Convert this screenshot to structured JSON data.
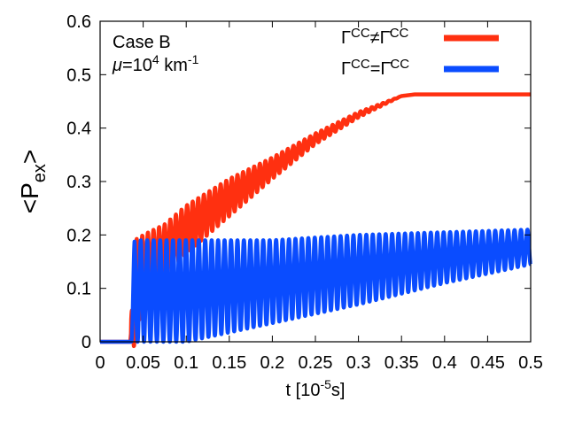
{
  "chart_data": {
    "type": "line",
    "title": "",
    "xlabel": {
      "base": "t [10",
      "sup": "-5",
      "tail": "s]"
    },
    "ylabel": {
      "base": "<P",
      "sub": "ex",
      "tail": ">"
    },
    "xlim": [
      0,
      0.5
    ],
    "ylim": [
      0,
      0.6
    ],
    "x_ticks": [
      0,
      0.05,
      0.1,
      0.15,
      0.2,
      0.25,
      0.3,
      0.35,
      0.4,
      0.45,
      0.5
    ],
    "x_tick_labels": [
      "0",
      "0.05",
      "0.1",
      "0.15",
      "0.2",
      "0.25",
      "0.3",
      "0.35",
      "0.4",
      "0.45",
      "0.5"
    ],
    "y_ticks": [
      0,
      0.1,
      0.2,
      0.3,
      0.4,
      0.5,
      0.6
    ],
    "y_tick_labels": [
      "0",
      "0.1",
      "0.2",
      "0.3",
      "0.4",
      "0.5",
      "0.6"
    ],
    "grid": false,
    "legend_position": "top-right",
    "annotations": {
      "case": "Case B",
      "mu": {
        "sym": "μ",
        "base": "=10",
        "sup": "4",
        "tail": " km",
        "sup2": "-1"
      }
    },
    "series": [
      {
        "name": "ΓCC≠Γ̄CC",
        "legend": {
          "g1": "Γ",
          "sup1": "CC",
          "op": "≠",
          "g2": "Γ̄",
          "sup2": "CC"
        },
        "color": "#ff3010",
        "x": [
          0,
          0.035,
          0.04,
          0.05,
          0.075,
          0.1,
          0.15,
          0.2,
          0.25,
          0.3,
          0.35,
          0.365,
          0.5
        ],
        "y": [
          0,
          0,
          0.09,
          0.14,
          0.17,
          0.21,
          0.27,
          0.325,
          0.38,
          0.425,
          0.46,
          0.463,
          0.463
        ],
        "oscillation_amplitude": [
          0,
          0,
          0.1,
          0.06,
          0.05,
          0.045,
          0.035,
          0.02,
          0.01,
          0.005,
          0,
          0,
          0
        ]
      },
      {
        "name": "ΓCC=Γ̄CC",
        "legend": {
          "g1": "Γ",
          "sup1": "CC",
          "op": "=",
          "g2": "Γ̄",
          "sup2": "CC"
        },
        "color": "#0a4cff",
        "x": [
          0,
          0.035,
          0.04,
          0.1,
          0.2,
          0.3,
          0.4,
          0.5
        ],
        "y_min": [
          0,
          0,
          0,
          0,
          0.035,
          0.07,
          0.11,
          0.145
        ],
        "y_max": [
          0,
          0,
          0.19,
          0.19,
          0.19,
          0.2,
          0.205,
          0.21
        ],
        "oscillations": 62
      }
    ]
  }
}
